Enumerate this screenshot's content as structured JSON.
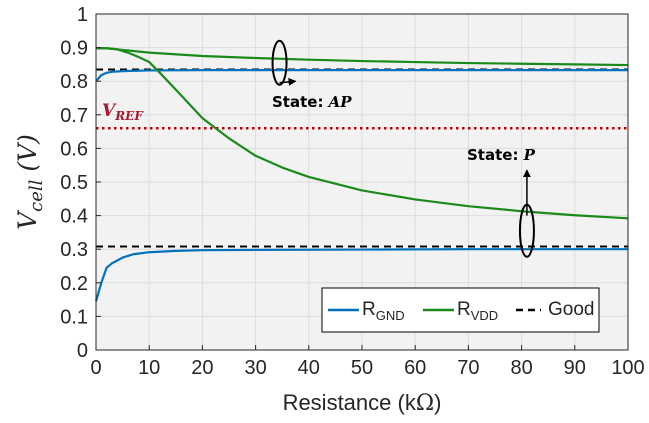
{
  "chart_data": {
    "type": "line",
    "xlabel_text": "Resistance (k",
    "xlabel_unit": "Ω",
    "xlabel_close": ")",
    "ylabel_main": "V",
    "ylabel_sub": "cell",
    "ylabel_unit": " (V)",
    "xlim": [
      0,
      100
    ],
    "ylim": [
      0,
      1
    ],
    "xticks": [
      0,
      10,
      20,
      30,
      40,
      50,
      60,
      70,
      80,
      90,
      100
    ],
    "yticks": [
      0,
      0.1,
      0.2,
      0.3,
      0.4,
      0.5,
      0.6,
      0.7,
      0.8,
      0.9,
      1
    ],
    "ytick_labels": [
      "0",
      "0.1",
      "0.2",
      "0.3",
      "0.4",
      "0.5",
      "0.6",
      "0.7",
      "0.8",
      "0.9",
      "1"
    ],
    "grid": true,
    "legend_position": "bottom-right",
    "series": [
      {
        "key": "rgnd_ap",
        "legend": "R_GND",
        "color": "#0072bd",
        "points": [
          [
            0,
            0.8
          ],
          [
            1,
            0.818
          ],
          [
            2,
            0.825
          ],
          [
            3,
            0.828
          ],
          [
            5,
            0.83
          ],
          [
            10,
            0.832
          ],
          [
            20,
            0.833
          ],
          [
            30,
            0.833
          ],
          [
            50,
            0.833
          ],
          [
            70,
            0.833
          ],
          [
            100,
            0.833
          ]
        ]
      },
      {
        "key": "rvdd_ap",
        "legend": "R_VDD",
        "color": "#1a8a1a",
        "points": [
          [
            0,
            0.898
          ],
          [
            2,
            0.898
          ],
          [
            5,
            0.893
          ],
          [
            10,
            0.885
          ],
          [
            20,
            0.875
          ],
          [
            30,
            0.869
          ],
          [
            40,
            0.864
          ],
          [
            50,
            0.86
          ],
          [
            60,
            0.857
          ],
          [
            70,
            0.854
          ],
          [
            80,
            0.852
          ],
          [
            90,
            0.85
          ],
          [
            100,
            0.848
          ]
        ]
      },
      {
        "key": "rvdd_p",
        "legend": "R_VDD",
        "color": "#1a8a1a",
        "points": [
          [
            0,
            0.898
          ],
          [
            2,
            0.898
          ],
          [
            4,
            0.895
          ],
          [
            6,
            0.885
          ],
          [
            8,
            0.872
          ],
          [
            10,
            0.857
          ],
          [
            12,
            0.825
          ],
          [
            15,
            0.775
          ],
          [
            20,
            0.69
          ],
          [
            25,
            0.63
          ],
          [
            30,
            0.578
          ],
          [
            35,
            0.543
          ],
          [
            40,
            0.515
          ],
          [
            50,
            0.475
          ],
          [
            60,
            0.448
          ],
          [
            70,
            0.428
          ],
          [
            80,
            0.413
          ],
          [
            90,
            0.401
          ],
          [
            100,
            0.392
          ]
        ]
      },
      {
        "key": "rgnd_p",
        "legend": "R_GND",
        "color": "#0072bd",
        "points": [
          [
            0,
            0.145
          ],
          [
            1,
            0.2
          ],
          [
            2,
            0.245
          ],
          [
            3,
            0.258
          ],
          [
            5,
            0.275
          ],
          [
            7,
            0.285
          ],
          [
            10,
            0.291
          ],
          [
            15,
            0.295
          ],
          [
            20,
            0.297
          ],
          [
            30,
            0.298
          ],
          [
            50,
            0.299
          ],
          [
            70,
            0.3
          ],
          [
            100,
            0.3
          ]
        ]
      }
    ],
    "good_lines": [
      {
        "legend": "Good",
        "y": 0.835,
        "color": "#000000"
      },
      {
        "legend": "Good",
        "y": 0.308,
        "color": "#000000"
      }
    ],
    "vref": {
      "y": 0.66,
      "label_main": "V",
      "label_sub": "REF",
      "color": "#c00000"
    },
    "legend": [
      {
        "label_main": "R",
        "label_sub": "GND",
        "color": "#0072bd",
        "style": "solid"
      },
      {
        "label_main": "R",
        "label_sub": "VDD",
        "color": "#1a8a1a",
        "style": "solid"
      },
      {
        "label_main": "Good",
        "label_sub": "",
        "color": "#000000",
        "style": "dashed"
      }
    ],
    "annotations": [
      {
        "key": "ap",
        "text": "State: ",
        "italic_text": "AP",
        "ellipse_x": 34.5,
        "ellipse_y": 0.855,
        "arrow_to": [
          37.5,
          0.8
        ]
      },
      {
        "key": "p",
        "text": "State: ",
        "italic_text": "P",
        "ellipse_x": 81,
        "ellipse_y": 0.355,
        "arrow_from": [
          81,
          0.4
        ],
        "arrow_to": [
          81,
          0.535
        ]
      }
    ]
  }
}
